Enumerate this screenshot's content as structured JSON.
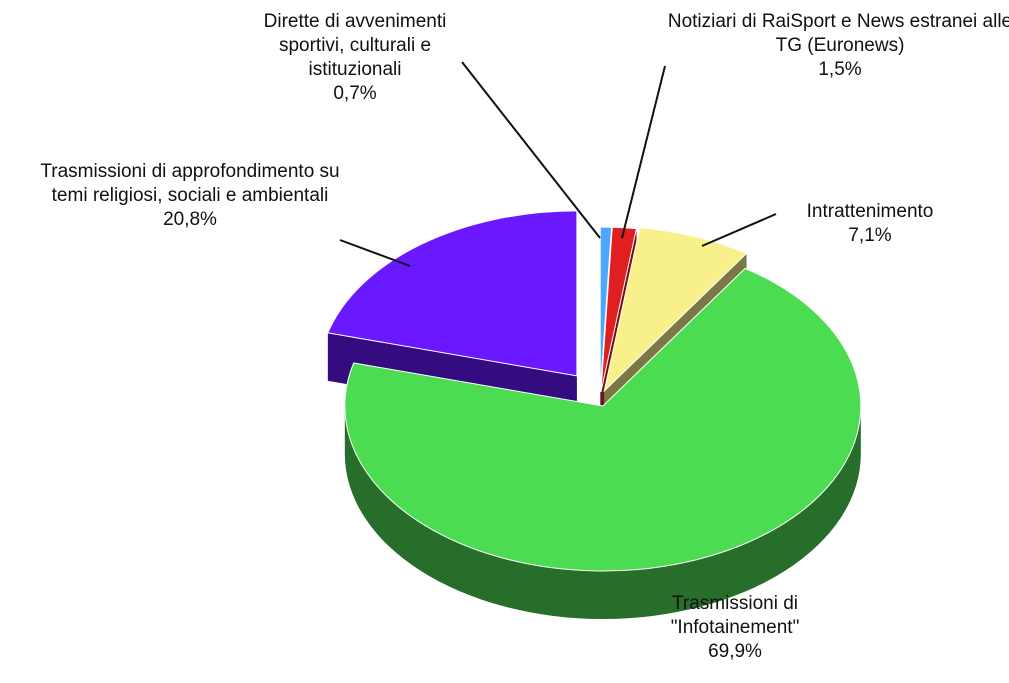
{
  "chart_data": {
    "type": "pie",
    "three_d": true,
    "categories": [
      "Dirette di avvenimenti sportivi, culturali e istituzionali",
      "Notiziari di RaiSport e News estranei alle TG (Euronews)",
      "Intrattenimento",
      "Trasmissioni di \"Infotainement\"",
      "Trasmissioni di approfondimento su temi religiosi, sociali e ambientali"
    ],
    "values": [
      0.7,
      1.5,
      7.1,
      69.9,
      20.8
    ],
    "value_labels": [
      "0,7%",
      "1,5%",
      "7,1%",
      "69,9%",
      "20,8%"
    ],
    "colors": [
      "#4da6ff",
      "#e02020",
      "#f8f08a",
      "#4cdc52",
      "#6a18ff"
    ]
  }
}
